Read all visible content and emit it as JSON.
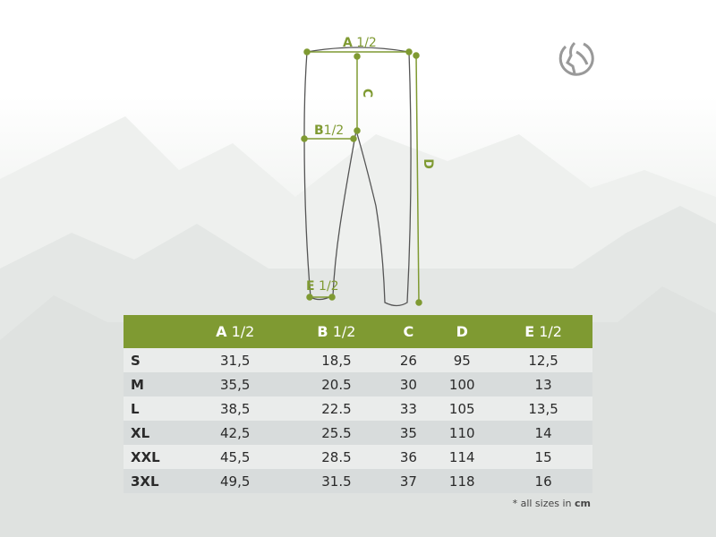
{
  "diagram": {
    "label_a": {
      "letter": "A",
      "fraction": "1/2"
    },
    "label_b": {
      "letter": "B",
      "fraction": "1/2"
    },
    "label_c": "C",
    "label_d": "D",
    "label_e": {
      "letter": "E",
      "fraction": "1/2"
    }
  },
  "logo": {
    "icon": "goat-head-circle-logo"
  },
  "table": {
    "headers": [
      {
        "letter": "",
        "fraction": ""
      },
      {
        "letter": "A",
        "fraction": "1/2"
      },
      {
        "letter": "B",
        "fraction": "1/2"
      },
      {
        "letter": "C",
        "fraction": ""
      },
      {
        "letter": "D",
        "fraction": ""
      },
      {
        "letter": "E",
        "fraction": "1/2"
      }
    ],
    "rows": [
      [
        "S",
        "31,5",
        "18,5",
        "26",
        "95",
        "12,5"
      ],
      [
        "M",
        "35,5",
        "20.5",
        "30",
        "100",
        "13"
      ],
      [
        "L",
        "38,5",
        "22.5",
        "33",
        "105",
        "13,5"
      ],
      [
        "XL",
        "42,5",
        "25.5",
        "35",
        "110",
        "14"
      ],
      [
        "XXL",
        "45,5",
        "28.5",
        "36",
        "114",
        "15"
      ],
      [
        "3XL",
        "49,5",
        "31.5",
        "37",
        "118",
        "16"
      ]
    ]
  },
  "note": {
    "prefix": "* all sizes in ",
    "unit": "cm"
  },
  "colors": {
    "accent": "#7f9a32",
    "outline": "#555555"
  }
}
